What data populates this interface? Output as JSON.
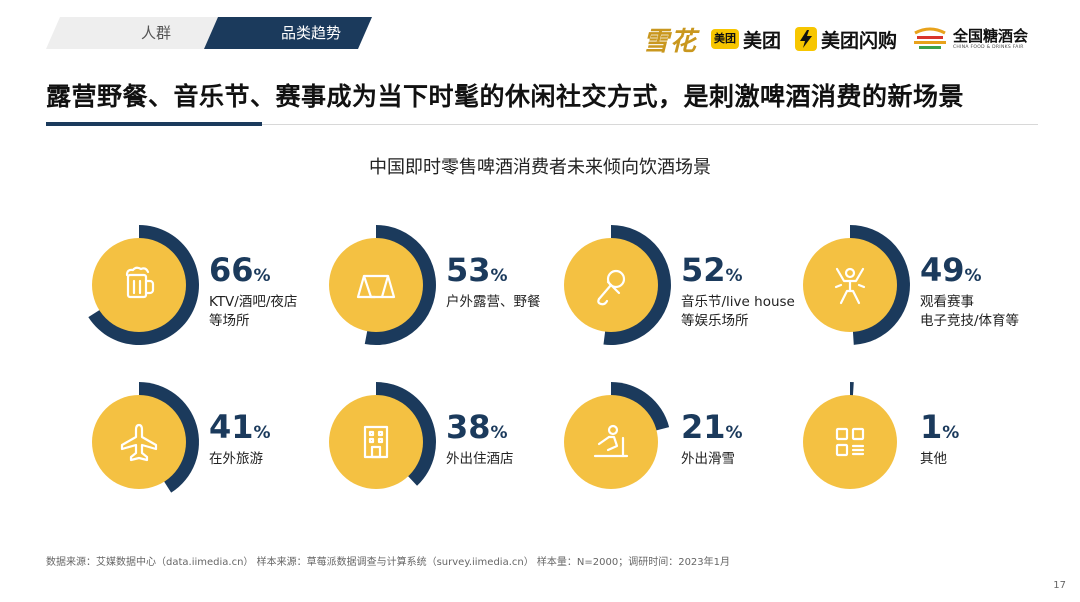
{
  "tabs": {
    "people": "人群",
    "trend": "品类趋势"
  },
  "logos": {
    "snow": "雪花",
    "meituan_badge": "美团",
    "meituan": "美团",
    "flash": "美团闪购",
    "fdf_cn": "全国糖酒会",
    "fdf_en": "CHINA FOOD & DRINKS FAIR"
  },
  "headline": "露营野餐、音乐节、赛事成为当下时髦的休闲社交方式，是刺激啤酒消费的新场景",
  "colors": {
    "navy": "#1b3a5c",
    "yellow": "#f4c142",
    "gray_tab": "#eeeeee"
  },
  "chart_data": {
    "type": "pie",
    "title": "中国即时零售啤酒消费者未来倾向饮酒场景",
    "unit": "%",
    "items": [
      {
        "value": 66,
        "label": "KTV/酒吧/夜店\n等场所",
        "icon": "beer-mug-icon"
      },
      {
        "value": 53,
        "label": "户外露营、野餐",
        "icon": "tent-icon"
      },
      {
        "value": 52,
        "label": "音乐节/live house\n等娱乐场所",
        "icon": "microphone-icon"
      },
      {
        "value": 49,
        "label": "观看赛事\n电子竞技/体育等",
        "icon": "cheering-person-icon"
      },
      {
        "value": 41,
        "label": "在外旅游",
        "icon": "airplane-icon"
      },
      {
        "value": 38,
        "label": "外出住酒店",
        "icon": "hotel-icon"
      },
      {
        "value": 21,
        "label": "外出滑雪",
        "icon": "skier-icon"
      },
      {
        "value": 1,
        "label": "其他",
        "icon": "grid-icon"
      }
    ]
  },
  "footer": "数据来源：艾媒数据中心（data.iimedia.cn） 样本来源：草莓派数据调查与计算系统（survey.iimedia.cn） 样本量：N=2000；调研时间：2023年1月",
  "page_number": "17"
}
